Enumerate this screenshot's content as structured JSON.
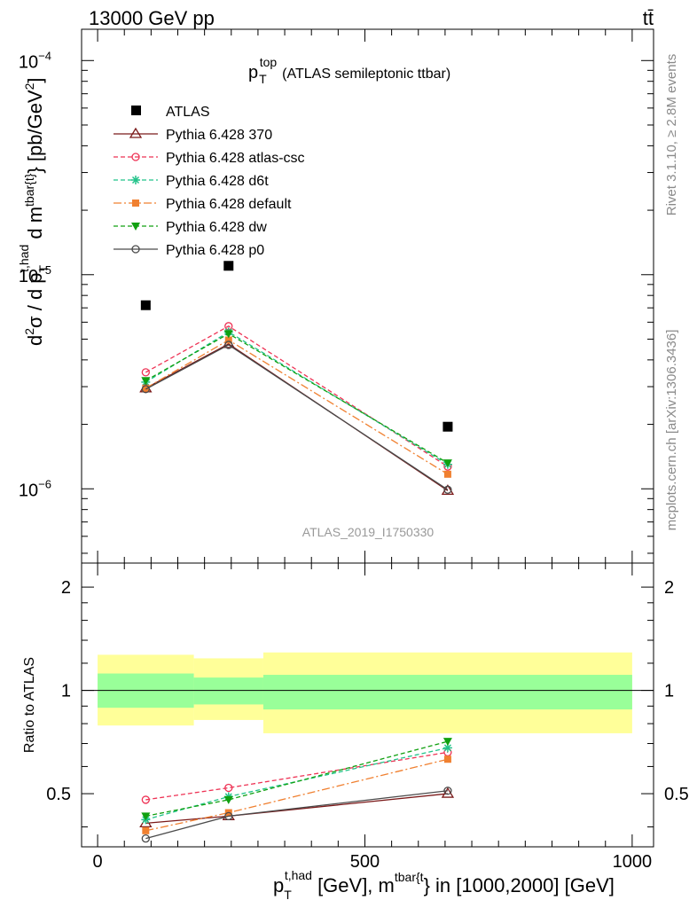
{
  "header": {
    "left": "13000 GeV pp",
    "right": "tt̄"
  },
  "side_labels": {
    "rivet": "Rivet 3.1.10, ≥ 2.8M events",
    "mcplots": "mcplots.cern.ch [arXiv:1306.3436]"
  },
  "plot_title": {
    "main": "p",
    "sub": "T",
    "sup": "top",
    "rest": "(ATLAS semileptonic ttbar)"
  },
  "watermark": "ATLAS_2019_I1750330",
  "ylabel_main": {
    "d2": "d",
    "d2sup": "2",
    "sigma": "σ / d p",
    "pt_sub": "T",
    "pt_sup": "t,had",
    "dm": " d m",
    "dm_sup": "tbar{t}",
    "unit_open": "} [pb/GeV",
    "unit_sup": "2",
    "unit_close": "]"
  },
  "ylabel_ratio": "Ratio to ATLAS",
  "xlabel": {
    "p": "p",
    "p_sub": "T",
    "p_sup": "t,had",
    "mid": " [GeV], m",
    "m_sup": "tbar{t",
    "rest": "} in [1000,2000] [GeV]"
  },
  "upper_ticks": [
    {
      "label": "10",
      "exp": "−4",
      "value": 0.0001
    },
    {
      "label": "10",
      "exp": "−5",
      "value": 1e-05
    },
    {
      "label": "10",
      "exp": "−6",
      "value": 1e-06
    }
  ],
  "ratio_ticks": [
    {
      "label": "2",
      "value": 2
    },
    {
      "label": "1",
      "value": 1
    },
    {
      "label": "0.5",
      "value": 0.5
    }
  ],
  "x_ticks": [
    {
      "label": "0",
      "value": 0
    },
    {
      "label": "500",
      "value": 500
    },
    {
      "label": "1000",
      "value": 1000
    }
  ],
  "chart_data": {
    "type": "line",
    "title": "pT top (ATLAS semileptonic ttbar)",
    "xlabel": "pT^{t,had} [GeV], m^{tbar{t}} in [1000,2000] [GeV]",
    "ylabel": "d²σ / d pT^{t,had} d m^{tbar{t}} [pb/GeV²]",
    "xlim": [
      -30,
      1040
    ],
    "ylim_upper": [
      4.5e-07,
      0.00014
    ],
    "ylim_ratio": [
      0.35,
      2.35
    ],
    "ylog": true,
    "legend_position": "top-left",
    "data": {
      "name": "ATLAS",
      "x": [
        90,
        245,
        655
      ],
      "y": [
        7.2e-06,
        1.1e-05,
        1.95e-06
      ],
      "bins": [
        [
          0,
          180
        ],
        [
          180,
          310
        ],
        [
          310,
          1000
        ]
      ],
      "band_stat_ratio": [
        [
          0.89,
          1.12
        ],
        [
          0.91,
          1.09
        ],
        [
          0.88,
          1.11
        ]
      ],
      "band_total_ratio": [
        [
          0.79,
          1.27
        ],
        [
          0.82,
          1.24
        ],
        [
          0.75,
          1.29
        ]
      ]
    },
    "series": [
      {
        "name": "Pythia 6.428 370",
        "color": "#7b1a1a",
        "dash": "",
        "marker": "triangle-open",
        "y": [
          2.95e-06,
          4.75e-06,
          9.8e-07
        ],
        "ratio": [
          0.41,
          0.43,
          0.5
        ]
      },
      {
        "name": "Pythia 6.428 atlas-csc",
        "color": "#ee3355",
        "dash": "5,3",
        "marker": "circle-open",
        "y": [
          3.5e-06,
          5.75e-06,
          1.27e-06
        ],
        "ratio": [
          0.48,
          0.52,
          0.66
        ]
      },
      {
        "name": "Pythia 6.428 d6t",
        "color": "#22c38a",
        "dash": "5,3",
        "marker": "star",
        "y": [
          3.15e-06,
          5.4e-06,
          1.3e-06
        ],
        "ratio": [
          0.42,
          0.49,
          0.68
        ]
      },
      {
        "name": "Pythia 6.428 default",
        "color": "#f08030",
        "dash": "9,3,2,3",
        "marker": "square",
        "y": [
          2.95e-06,
          4.95e-06,
          1.17e-06
        ],
        "ratio": [
          0.39,
          0.44,
          0.63
        ]
      },
      {
        "name": "Pythia 6.428 dw",
        "color": "#10a010",
        "dash": "5,3",
        "marker": "triangle-down",
        "y": [
          3.2e-06,
          5.3e-06,
          1.32e-06
        ],
        "ratio": [
          0.43,
          0.48,
          0.71
        ]
      },
      {
        "name": "Pythia 6.428 p0",
        "color": "#4a4a4a",
        "dash": "",
        "marker": "circle-open",
        "y": [
          2.92e-06,
          4.7e-06,
          9.9e-07
        ],
        "ratio": [
          0.37,
          0.43,
          0.51
        ]
      }
    ]
  }
}
